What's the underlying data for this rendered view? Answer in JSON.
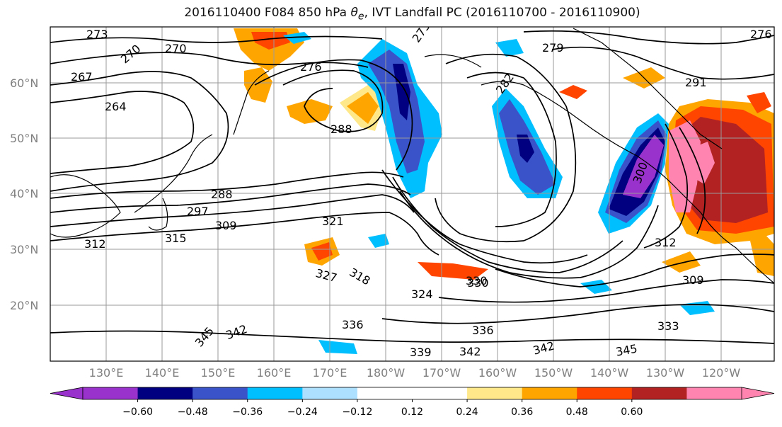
{
  "title": {
    "prefix": "2016110400 F084 850 hPa ",
    "theta": "θ",
    "theta_sub": "e",
    "suffix": ", IVT Landfall PC (2016110700 - 2016110900)"
  },
  "map": {
    "lat_labels": [
      "60°N",
      "50°N",
      "40°N",
      "30°N",
      "20°N"
    ],
    "lon_labels": [
      "130°E",
      "140°E",
      "150°E",
      "160°E",
      "170°E",
      "180°W",
      "170°W",
      "160°W",
      "150°W",
      "140°W",
      "130°W",
      "120°W"
    ],
    "contour_labels": [
      "273",
      "270",
      "270",
      "267",
      "264",
      "276",
      "288",
      "273",
      "279",
      "282",
      "291",
      "276",
      "288",
      "297",
      "309",
      "315",
      "312",
      "324",
      "318",
      "327",
      "321",
      "330",
      "336",
      "342",
      "345",
      "339",
      "342",
      "342",
      "345",
      "336",
      "333",
      "309",
      "312",
      "330",
      "300"
    ]
  },
  "colorbar": {
    "colors": [
      "#9932CC",
      "#000080",
      "#3A53C8",
      "#00BFFF",
      "#ADDFFF",
      "#FFFFFF",
      "#FFFFFF",
      "#FFE88A",
      "#FFA500",
      "#FF4500",
      "#B22222",
      "#FF85B0"
    ],
    "ticks": [
      "−0.60",
      "−0.48",
      "−0.36",
      "−0.24",
      "−0.12",
      "0.12",
      "0.24",
      "0.36",
      "0.48",
      "0.60"
    ],
    "extend": "both"
  },
  "colors": {
    "land_outline": "#000000",
    "contour": "#000000",
    "grid": "#808080"
  }
}
